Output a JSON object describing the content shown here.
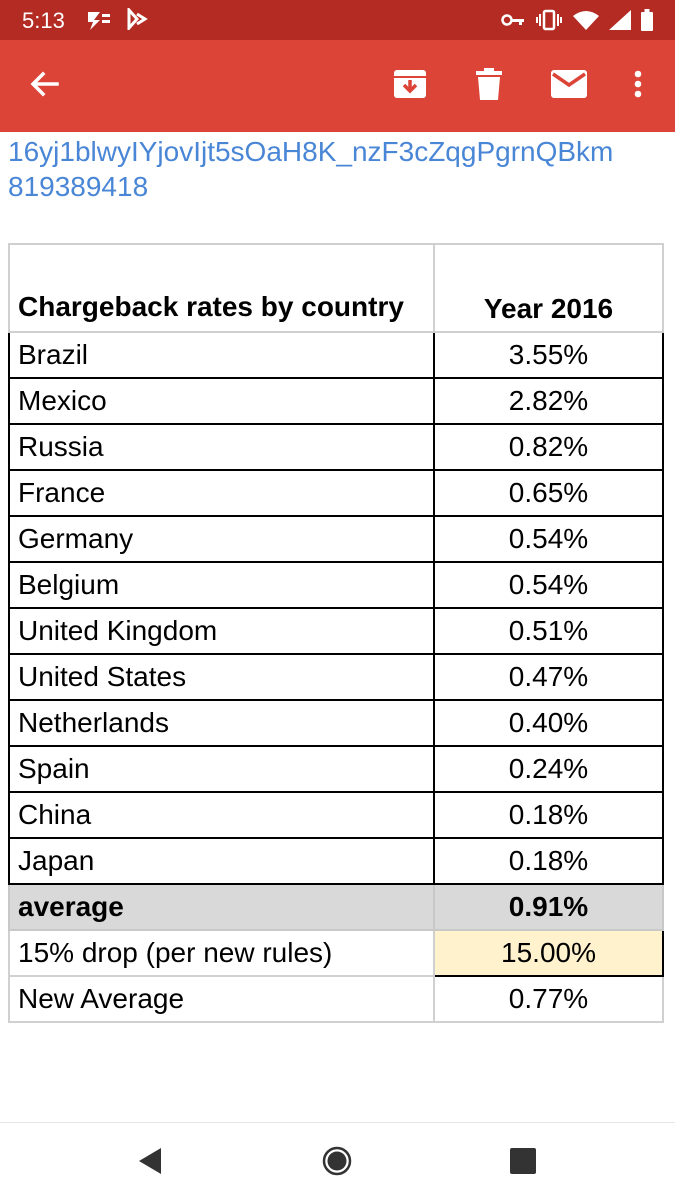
{
  "status_bar": {
    "time": "5:13",
    "left_icons": [
      "carrier-app-icon",
      "messaging-app-icon"
    ],
    "right_icons": [
      "vpn-key-icon",
      "vibrate-icon",
      "wifi-icon",
      "signal-icon",
      "battery-icon"
    ]
  },
  "app_bar": {
    "color": "#db4437",
    "icons": [
      "back-arrow-icon",
      "archive-icon",
      "delete-icon",
      "mark-unread-icon",
      "more-vert-icon"
    ]
  },
  "email_body": {
    "link_line_1": "16yj1blwyIYjovIjt5sOaH8K_nzF3cZqgPgrnQBkm",
    "link_line_2": "819389418"
  },
  "table": {
    "header": {
      "country": "Chargeback rates by country",
      "year": "Year 2016"
    },
    "rows": [
      {
        "country": "Brazil",
        "rate": "3.55%"
      },
      {
        "country": "Mexico",
        "rate": "2.82%"
      },
      {
        "country": "Russia",
        "rate": "0.82%"
      },
      {
        "country": "France",
        "rate": "0.65%"
      },
      {
        "country": "Germany",
        "rate": "0.54%"
      },
      {
        "country": "Belgium",
        "rate": "0.54%"
      },
      {
        "country": "United Kingdom",
        "rate": "0.51%"
      },
      {
        "country": "United States",
        "rate": "0.47%"
      },
      {
        "country": "Netherlands",
        "rate": "0.40%"
      },
      {
        "country": "Spain",
        "rate": "0.24%"
      },
      {
        "country": "China",
        "rate": "0.18%"
      },
      {
        "country": "Japan",
        "rate": "0.18%"
      }
    ],
    "average": {
      "label": "average",
      "value": "0.91%"
    },
    "drop": {
      "label": "15% drop (per new rules)",
      "value": "15.00%"
    },
    "new_average": {
      "label": "New Average",
      "value": "0.77%"
    }
  },
  "nav_bar": {
    "icons": [
      "nav-back-icon",
      "nav-home-icon",
      "nav-recents-icon"
    ]
  }
}
